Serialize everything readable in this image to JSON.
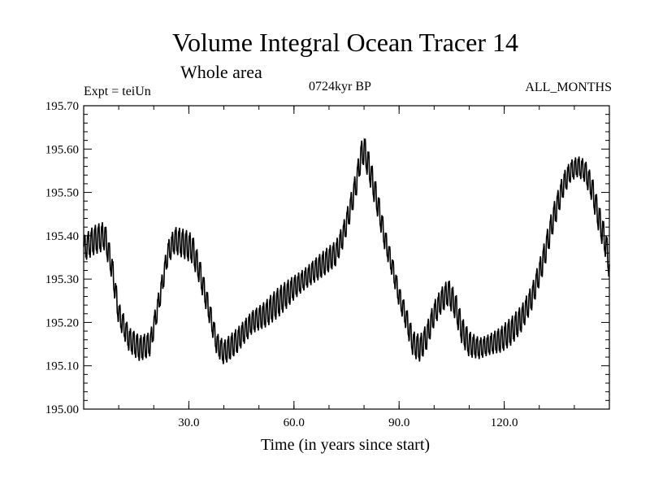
{
  "chart_data": {
    "type": "line",
    "title": "Volume Integral Ocean Tracer 14",
    "subtitle": "Whole area",
    "annotations": {
      "experiment": "Expt = teiUn",
      "period": "0724kyr BP",
      "months": "ALL_MONTHS"
    },
    "xlabel": "Time (in years since start)",
    "ylabel": "",
    "xlim": [
      0,
      150
    ],
    "ylim": [
      195.0,
      195.7
    ],
    "x_ticks": [
      30,
      60,
      90,
      120
    ],
    "x_tick_labels": [
      "30.0",
      "60.0",
      "90.0",
      "120.0"
    ],
    "y_ticks": [
      195.0,
      195.1,
      195.2,
      195.3,
      195.4,
      195.5,
      195.6,
      195.7
    ],
    "y_tick_labels": [
      "195.00",
      "195.10",
      "195.20",
      "195.30",
      "195.40",
      "195.50",
      "195.60",
      "195.70"
    ],
    "series": [
      {
        "name": "Volume integral",
        "seasonal_amplitude": 0.035,
        "x": [
          0,
          3,
          6,
          8,
          10,
          13,
          16,
          19,
          22,
          24,
          26,
          29,
          31,
          33,
          36,
          38,
          40,
          44,
          48,
          52,
          56,
          60,
          63,
          66,
          69,
          72,
          74,
          76,
          78,
          79,
          80,
          82,
          84,
          86,
          88,
          90,
          92,
          94,
          96,
          98,
          100,
          102,
          104,
          106,
          108,
          110,
          113,
          116,
          119,
          122,
          125,
          128,
          131,
          134,
          137,
          139,
          141,
          143,
          145,
          147,
          149,
          150
        ],
        "values": [
          195.37,
          195.39,
          195.4,
          195.33,
          195.22,
          195.16,
          195.14,
          195.15,
          195.27,
          195.36,
          195.39,
          195.38,
          195.37,
          195.32,
          195.22,
          195.15,
          195.13,
          195.16,
          195.2,
          195.22,
          195.25,
          195.28,
          195.3,
          195.32,
          195.34,
          195.36,
          195.4,
          195.46,
          195.53,
          195.58,
          195.6,
          195.54,
          195.47,
          195.39,
          195.33,
          195.26,
          195.21,
          195.15,
          195.14,
          195.17,
          195.22,
          195.25,
          195.27,
          195.24,
          195.18,
          195.15,
          195.14,
          195.15,
          195.16,
          195.18,
          195.21,
          195.26,
          195.34,
          195.44,
          195.52,
          195.55,
          195.56,
          195.55,
          195.51,
          195.44,
          195.38,
          195.33
        ]
      }
    ]
  }
}
